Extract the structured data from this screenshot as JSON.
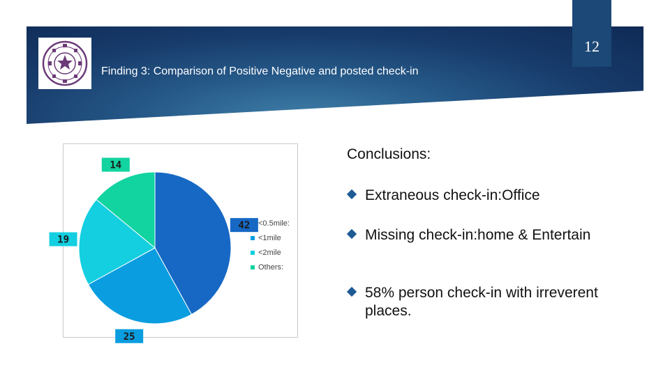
{
  "header": {
    "page_number": "12",
    "title": "Finding 3: Comparison of Positive Negative and posted check-in",
    "logo_icon": "university-seal-icon"
  },
  "conclusions": {
    "heading": "Conclusions:",
    "bullets": [
      "Extraneous check-in:Office",
      "Missing check-in:home & Entertain",
      "58% person check-in with irreverent places."
    ]
  },
  "chart_data": {
    "type": "pie",
    "categories": [
      "<0.5mile:",
      "<1mile",
      "<2mile",
      "Others:"
    ],
    "values": [
      42,
      25,
      19,
      14
    ],
    "data_labels": [
      "42",
      "25",
      "19",
      "14"
    ],
    "colors": [
      "#1668c4",
      "#0a9de0",
      "#13cfe0",
      "#12d4a0"
    ],
    "title": "",
    "legend": "right"
  }
}
